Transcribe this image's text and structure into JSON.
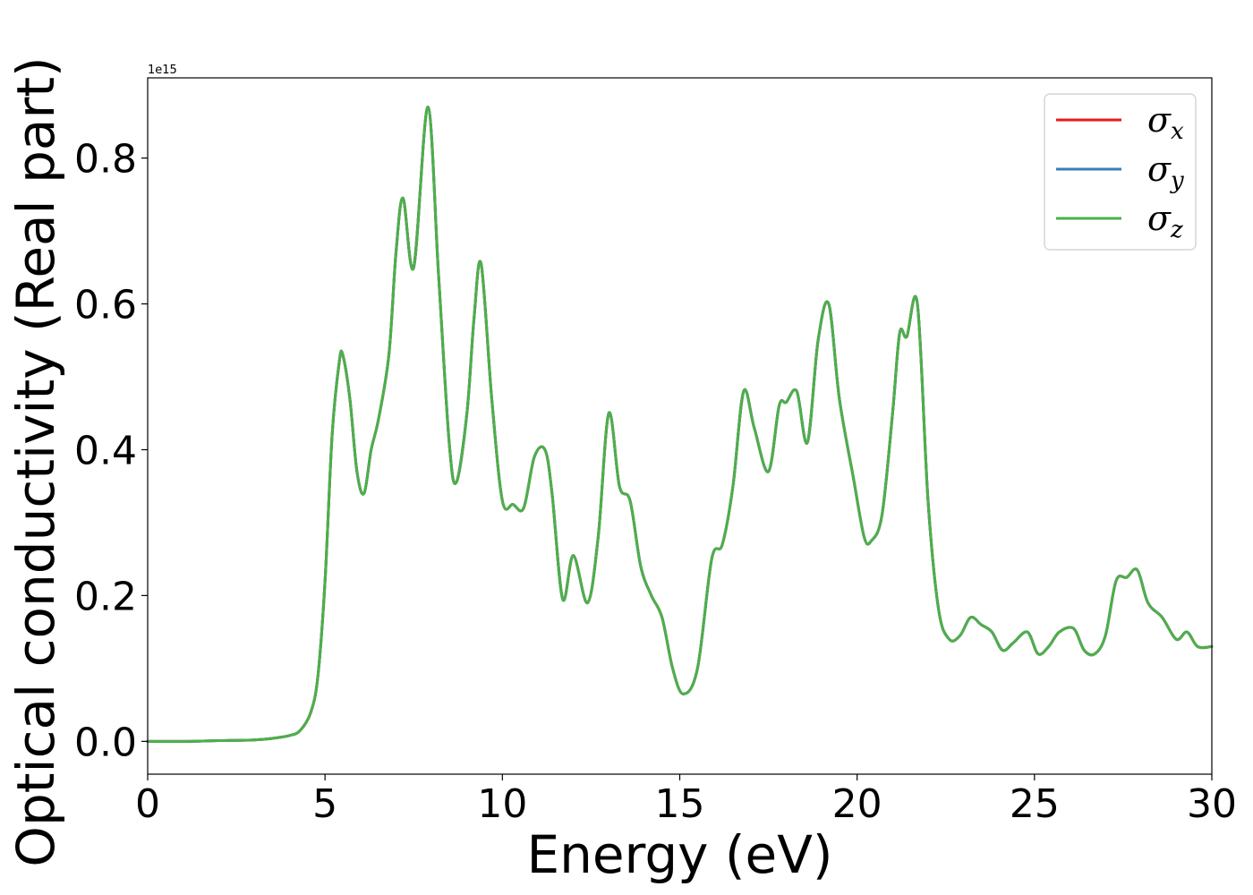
{
  "chart_data": {
    "type": "line",
    "title": "",
    "xlabel": "Energy (eV)",
    "ylabel": "Optical conductivity (Real part)",
    "y_offset_text": "1e15",
    "y_scale_factor": 1000000000000000.0,
    "xlim": [
      0,
      30
    ],
    "ylim": [
      -0.045,
      0.91
    ],
    "x_ticks": [
      0,
      5,
      10,
      15,
      20,
      25,
      30
    ],
    "x_tick_labels": [
      "0",
      "5",
      "10",
      "15",
      "20",
      "25",
      "30"
    ],
    "y_ticks": [
      0.0,
      0.2,
      0.4,
      0.6,
      0.8
    ],
    "y_tick_labels": [
      "0.0",
      "0.2",
      "0.4",
      "0.6",
      "0.8"
    ],
    "grid": false,
    "legend_position": "top-right",
    "x": [
      0,
      1,
      2,
      3,
      3.5,
      4,
      4.3,
      4.6,
      4.8,
      5.0,
      5.2,
      5.4,
      5.5,
      5.7,
      5.9,
      6.1,
      6.3,
      6.5,
      6.8,
      7.0,
      7.2,
      7.5,
      7.9,
      8.2,
      8.5,
      8.7,
      9.0,
      9.2,
      9.4,
      9.7,
      10.0,
      10.3,
      10.6,
      10.9,
      11.2,
      11.4,
      11.7,
      12.0,
      12.4,
      12.7,
      13.0,
      13.3,
      13.6,
      13.9,
      14.2,
      14.5,
      14.8,
      15.1,
      15.5,
      15.9,
      16.2,
      16.5,
      16.8,
      17.1,
      17.5,
      17.8,
      18.0,
      18.3,
      18.6,
      18.9,
      19.2,
      19.5,
      19.9,
      20.2,
      20.4,
      20.7,
      21.0,
      21.2,
      21.4,
      21.7,
      22.0,
      22.3,
      22.6,
      22.9,
      23.2,
      23.5,
      23.8,
      24.1,
      24.4,
      24.8,
      25.1,
      25.4,
      25.7,
      26.1,
      26.4,
      26.7,
      27.0,
      27.3,
      27.6,
      27.9,
      28.2,
      28.6,
      29.0,
      29.3,
      29.6,
      30.0
    ],
    "series": [
      {
        "name": "σx",
        "symbol": "σ",
        "subscript": "x",
        "color": "#e41a1c",
        "values": [
          0.0,
          0.0,
          0.001,
          0.002,
          0.004,
          0.008,
          0.015,
          0.04,
          0.09,
          0.22,
          0.42,
          0.52,
          0.53,
          0.47,
          0.37,
          0.34,
          0.4,
          0.44,
          0.53,
          0.67,
          0.745,
          0.65,
          0.87,
          0.64,
          0.41,
          0.355,
          0.45,
          0.58,
          0.655,
          0.47,
          0.33,
          0.325,
          0.32,
          0.39,
          0.4,
          0.34,
          0.195,
          0.255,
          0.19,
          0.28,
          0.45,
          0.35,
          0.33,
          0.24,
          0.2,
          0.17,
          0.1,
          0.065,
          0.1,
          0.25,
          0.27,
          0.35,
          0.48,
          0.43,
          0.37,
          0.46,
          0.465,
          0.48,
          0.41,
          0.55,
          0.6,
          0.47,
          0.36,
          0.28,
          0.275,
          0.31,
          0.45,
          0.56,
          0.555,
          0.6,
          0.33,
          0.18,
          0.14,
          0.145,
          0.17,
          0.16,
          0.15,
          0.125,
          0.135,
          0.15,
          0.12,
          0.13,
          0.15,
          0.155,
          0.125,
          0.12,
          0.145,
          0.22,
          0.225,
          0.235,
          0.19,
          0.17,
          0.14,
          0.15,
          0.13,
          0.13
        ]
      },
      {
        "name": "σy",
        "symbol": "σ",
        "subscript": "y",
        "color": "#377eb8",
        "values": [
          0.0,
          0.0,
          0.001,
          0.002,
          0.004,
          0.008,
          0.015,
          0.04,
          0.09,
          0.22,
          0.42,
          0.52,
          0.53,
          0.47,
          0.37,
          0.34,
          0.4,
          0.44,
          0.53,
          0.67,
          0.745,
          0.65,
          0.87,
          0.64,
          0.41,
          0.355,
          0.45,
          0.58,
          0.655,
          0.47,
          0.33,
          0.325,
          0.32,
          0.39,
          0.4,
          0.34,
          0.195,
          0.255,
          0.19,
          0.28,
          0.45,
          0.35,
          0.33,
          0.24,
          0.2,
          0.17,
          0.1,
          0.065,
          0.1,
          0.25,
          0.27,
          0.35,
          0.48,
          0.43,
          0.37,
          0.46,
          0.465,
          0.48,
          0.41,
          0.55,
          0.6,
          0.47,
          0.36,
          0.28,
          0.275,
          0.31,
          0.45,
          0.56,
          0.555,
          0.6,
          0.33,
          0.18,
          0.14,
          0.145,
          0.17,
          0.16,
          0.15,
          0.125,
          0.135,
          0.15,
          0.12,
          0.13,
          0.15,
          0.155,
          0.125,
          0.12,
          0.145,
          0.22,
          0.225,
          0.235,
          0.19,
          0.17,
          0.14,
          0.15,
          0.13,
          0.13
        ]
      },
      {
        "name": "σz",
        "symbol": "σ",
        "subscript": "z",
        "color": "#4daf4a",
        "values": [
          0.0,
          0.0,
          0.001,
          0.002,
          0.004,
          0.008,
          0.015,
          0.04,
          0.09,
          0.22,
          0.42,
          0.52,
          0.53,
          0.47,
          0.37,
          0.34,
          0.4,
          0.44,
          0.53,
          0.67,
          0.745,
          0.65,
          0.87,
          0.64,
          0.41,
          0.355,
          0.45,
          0.58,
          0.655,
          0.47,
          0.33,
          0.325,
          0.32,
          0.39,
          0.4,
          0.34,
          0.195,
          0.255,
          0.19,
          0.28,
          0.45,
          0.35,
          0.33,
          0.24,
          0.2,
          0.17,
          0.1,
          0.065,
          0.1,
          0.25,
          0.27,
          0.35,
          0.48,
          0.43,
          0.37,
          0.46,
          0.465,
          0.48,
          0.41,
          0.55,
          0.6,
          0.47,
          0.36,
          0.28,
          0.275,
          0.31,
          0.45,
          0.56,
          0.555,
          0.6,
          0.33,
          0.18,
          0.14,
          0.145,
          0.17,
          0.16,
          0.15,
          0.125,
          0.135,
          0.15,
          0.12,
          0.13,
          0.15,
          0.155,
          0.125,
          0.12,
          0.145,
          0.22,
          0.225,
          0.235,
          0.19,
          0.17,
          0.14,
          0.15,
          0.13,
          0.13
        ]
      }
    ]
  }
}
